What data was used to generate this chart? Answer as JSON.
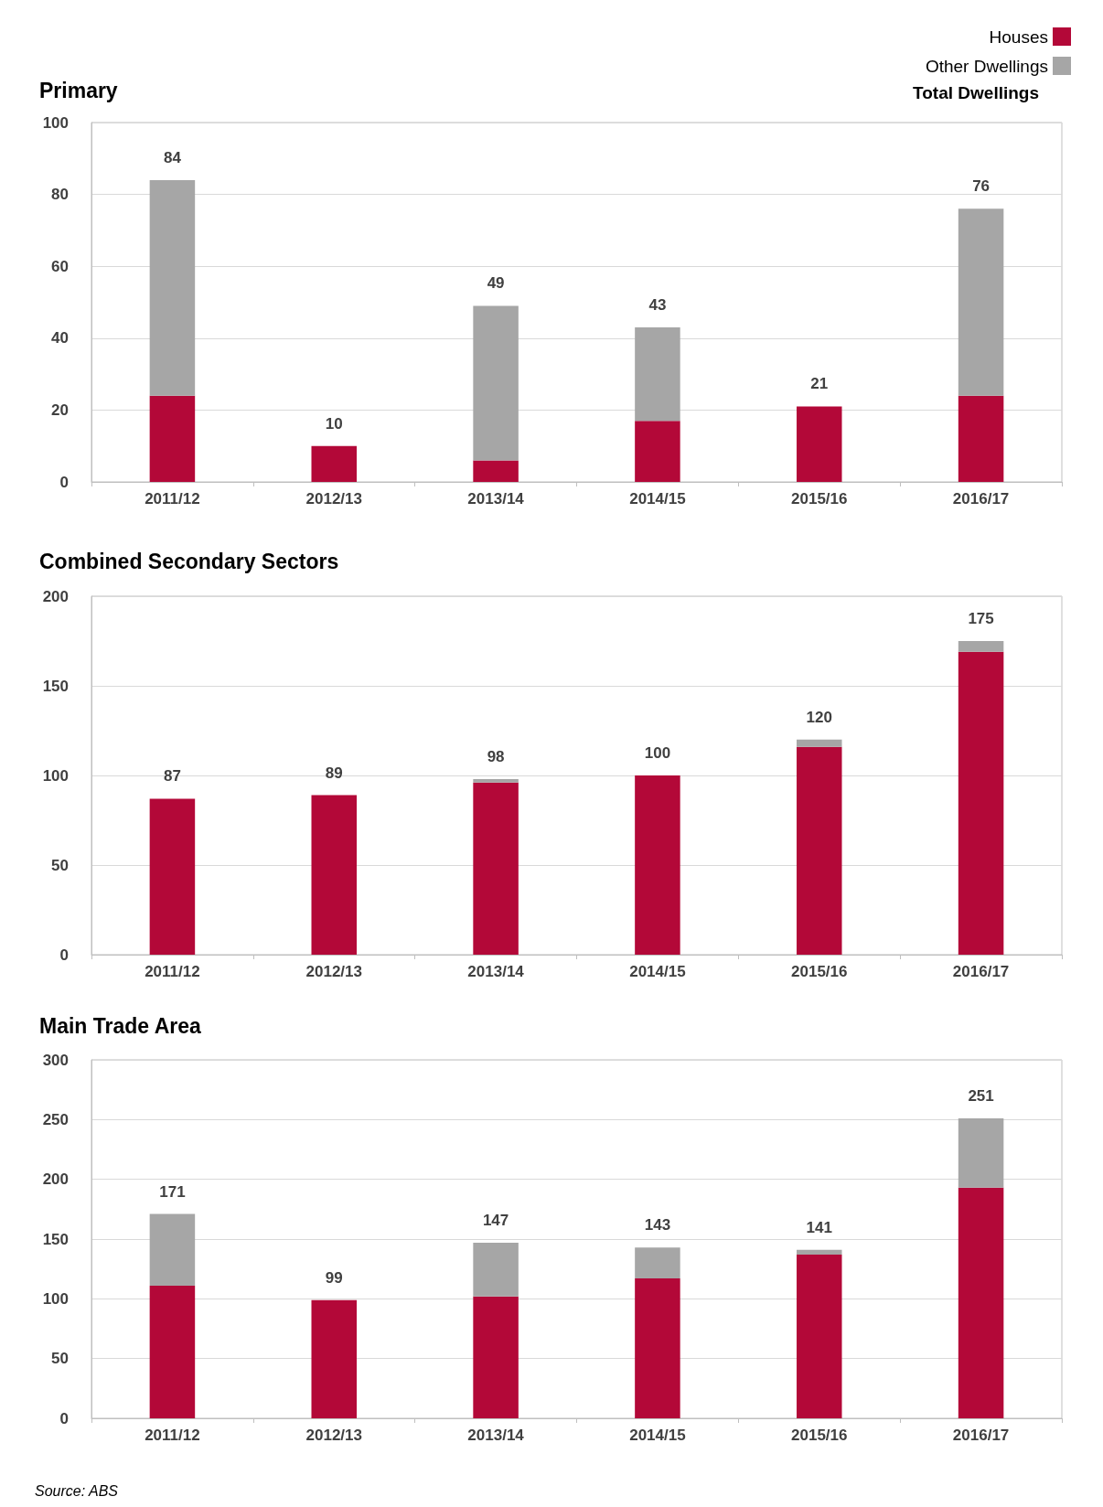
{
  "chart_data": [
    {
      "type": "bar",
      "title": "Primary",
      "categories": [
        "2011/12",
        "2012/13",
        "2013/14",
        "2014/15",
        "2015/16",
        "2016/17"
      ],
      "stacked": true,
      "series": [
        {
          "name": "Houses",
          "color": "#b30838",
          "values": [
            24,
            10,
            6,
            17,
            21,
            24
          ]
        },
        {
          "name": "Other Dwellings",
          "color": "#a6a6a6",
          "values": [
            60,
            0,
            43,
            26,
            0,
            52
          ]
        }
      ],
      "totals": [
        "84",
        "10",
        "49",
        "43",
        "21",
        "76"
      ],
      "ylim": [
        0,
        100
      ],
      "yticks": [
        0,
        20,
        40,
        60,
        80,
        100
      ],
      "grid": "y",
      "legend": "top right",
      "annotations": [
        "Total Dwellings"
      ]
    },
    {
      "type": "bar",
      "title": "Combined Secondary Sectors",
      "categories": [
        "2011/12",
        "2012/13",
        "2013/14",
        "2014/15",
        "2015/16",
        "2016/17"
      ],
      "stacked": true,
      "series": [
        {
          "color": "#b30838",
          "values": [
            87,
            89,
            96,
            100,
            116,
            169
          ]
        },
        {
          "color": "#a6a6a6",
          "values": [
            0,
            0,
            2,
            0,
            4,
            6
          ]
        }
      ],
      "totals": [
        "87",
        "89",
        "98",
        "100",
        "120",
        "175"
      ],
      "ylim": [
        0,
        200
      ],
      "yticks": [
        0,
        50,
        100,
        150,
        200
      ],
      "grid": "y",
      "legend": false
    },
    {
      "type": "bar",
      "title": "Main Trade Area",
      "categories": [
        "2011/12",
        "2012/13",
        "2013/14",
        "2014/15",
        "2015/16",
        "2016/17"
      ],
      "stacked": true,
      "series": [
        {
          "color": "#b30838",
          "values": [
            111,
            99,
            102,
            117,
            137,
            193
          ]
        },
        {
          "color": "#a6a6a6",
          "values": [
            60,
            0,
            45,
            26,
            4,
            58
          ]
        }
      ],
      "totals": [
        "171",
        "99",
        "147",
        "143",
        "141",
        "251"
      ],
      "ylim": [
        0,
        300
      ],
      "yticks": [
        0,
        50,
        100,
        150,
        200,
        250,
        300
      ],
      "grid": "y",
      "legend": false,
      "annotations": [
        "Source: ABS"
      ]
    }
  ]
}
